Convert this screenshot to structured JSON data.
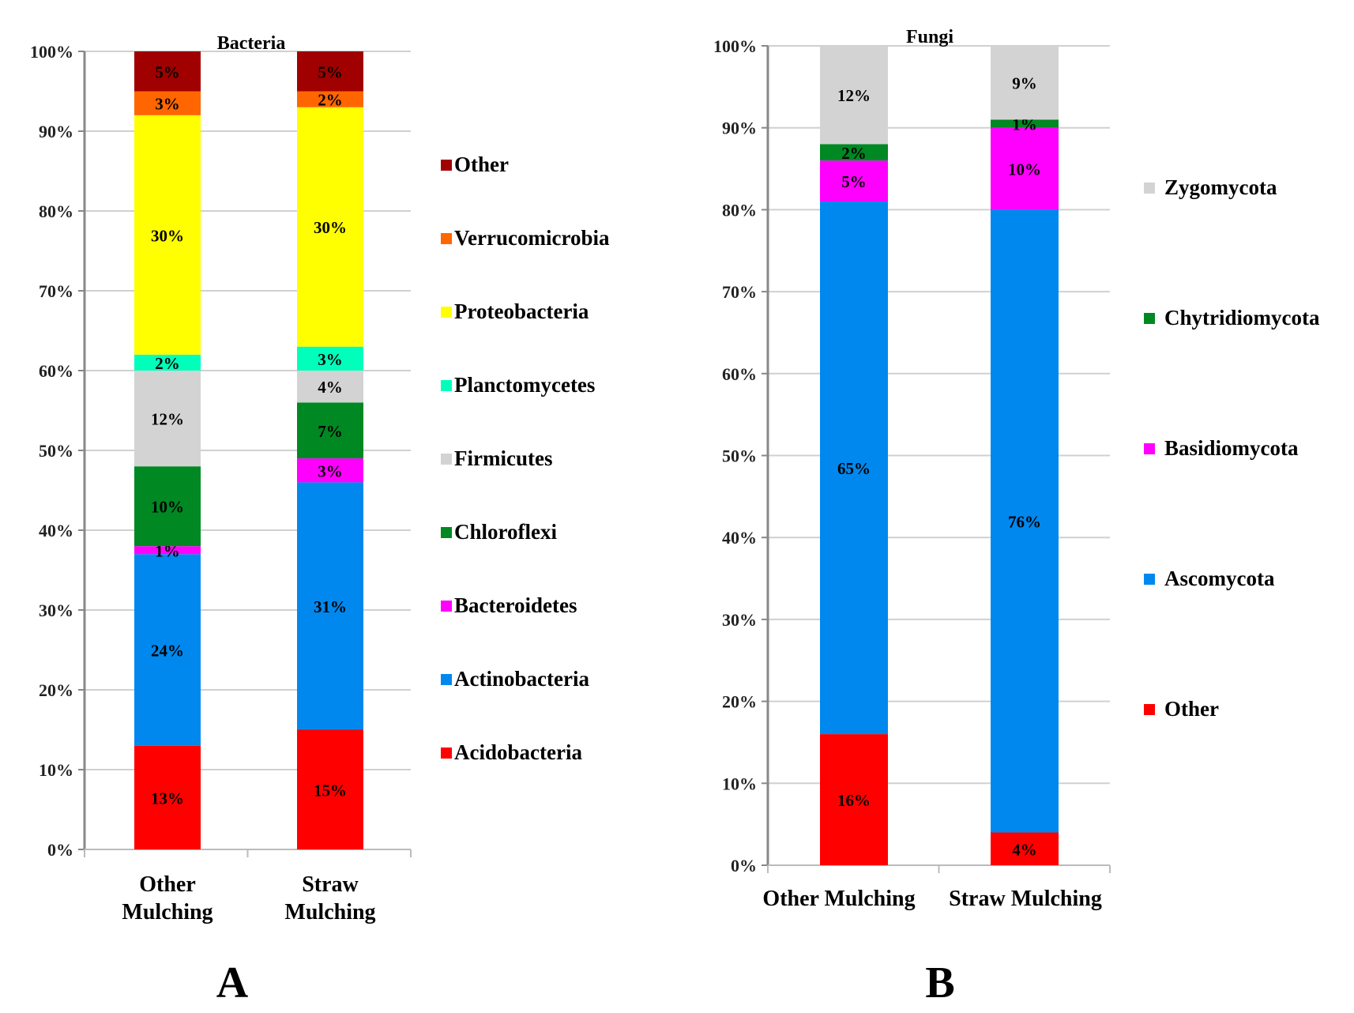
{
  "figure": {
    "panel_labels": [
      "A",
      "B"
    ]
  },
  "chart_data": [
    {
      "type": "bar",
      "stacked": true,
      "title": "Bacteria",
      "panel": "A",
      "xlabel": "",
      "ylabel": "",
      "ylim": [
        0,
        100
      ],
      "yticks": [
        "0%",
        "10%",
        "20%",
        "30%",
        "40%",
        "50%",
        "60%",
        "70%",
        "80%",
        "90%",
        "100%"
      ],
      "categories": [
        "Other Mulching",
        "Straw Mulching"
      ],
      "category_lines": [
        [
          "Other",
          "Mulching"
        ],
        [
          "Straw",
          "Mulching"
        ]
      ],
      "grid": true,
      "legend_position": "right",
      "series": [
        {
          "name": "Acidobacteria",
          "color": "#ff0000",
          "values": [
            13,
            15
          ],
          "labels": [
            "13%",
            "15%"
          ]
        },
        {
          "name": "Actinobacteria",
          "color": "#0088ee",
          "values": [
            24,
            31
          ],
          "labels": [
            "24%",
            "31%"
          ]
        },
        {
          "name": "Bacteroidetes",
          "color": "#ff00ff",
          "values": [
            1,
            3
          ],
          "labels": [
            "1%",
            "3%"
          ]
        },
        {
          "name": "Chloroflexi",
          "color": "#008822",
          "values": [
            10,
            7
          ],
          "labels": [
            "10%",
            "7%"
          ]
        },
        {
          "name": "Firmicutes",
          "color": "#d3d3d3",
          "values": [
            12,
            4
          ],
          "labels": [
            "12%",
            "4%"
          ]
        },
        {
          "name": "Planctomycetes",
          "color": "#00ffbb",
          "values": [
            2,
            3
          ],
          "labels": [
            "2%",
            "3%"
          ]
        },
        {
          "name": "Proteobacteria",
          "color": "#ffff00",
          "values": [
            30,
            30
          ],
          "labels": [
            "30%",
            "30%"
          ]
        },
        {
          "name": "Verrucomicrobia",
          "color": "#ff6600",
          "values": [
            3,
            2
          ],
          "labels": [
            "3%",
            "2%"
          ]
        },
        {
          "name": "Other",
          "color": "#a00000",
          "values": [
            5,
            5
          ],
          "labels": [
            "5%",
            "5%"
          ]
        }
      ],
      "legend_order": [
        "Other",
        "Verrucomicrobia",
        "Proteobacteria",
        "Planctomycetes",
        "Firmicutes",
        "Chloroflexi",
        "Bacteroidetes",
        "Actinobacteria",
        "Acidobacteria"
      ]
    },
    {
      "type": "bar",
      "stacked": true,
      "title": "Fungi",
      "panel": "B",
      "xlabel": "",
      "ylabel": "",
      "ylim": [
        0,
        100
      ],
      "yticks": [
        "0%",
        "10%",
        "20%",
        "30%",
        "40%",
        "50%",
        "60%",
        "70%",
        "80%",
        "90%",
        "100%"
      ],
      "categories": [
        "Other Mulching",
        "Straw Mulching"
      ],
      "category_lines": [
        [
          "Other Mulching"
        ],
        [
          "Straw Mulching"
        ]
      ],
      "grid": true,
      "legend_position": "right",
      "series": [
        {
          "name": "Other",
          "color": "#ff0000",
          "values": [
            16,
            4
          ],
          "labels": [
            "16%",
            "4%"
          ]
        },
        {
          "name": "Ascomycota",
          "color": "#0088ee",
          "values": [
            65,
            76
          ],
          "labels": [
            "65%",
            "76%"
          ]
        },
        {
          "name": "Basidiomycota",
          "color": "#ff00ff",
          "values": [
            5,
            10
          ],
          "labels": [
            "5%",
            "10%"
          ]
        },
        {
          "name": "Chytridiomycota",
          "color": "#008822",
          "values": [
            2,
            1
          ],
          "labels": [
            "2%",
            "1%"
          ]
        },
        {
          "name": "Zygomycota",
          "color": "#d3d3d3",
          "values": [
            12,
            9
          ],
          "labels": [
            "12%",
            "9%"
          ]
        }
      ],
      "legend_order": [
        "Zygomycota",
        "Chytridiomycota",
        "Basidiomycota",
        "Ascomycota",
        "Other"
      ]
    }
  ]
}
